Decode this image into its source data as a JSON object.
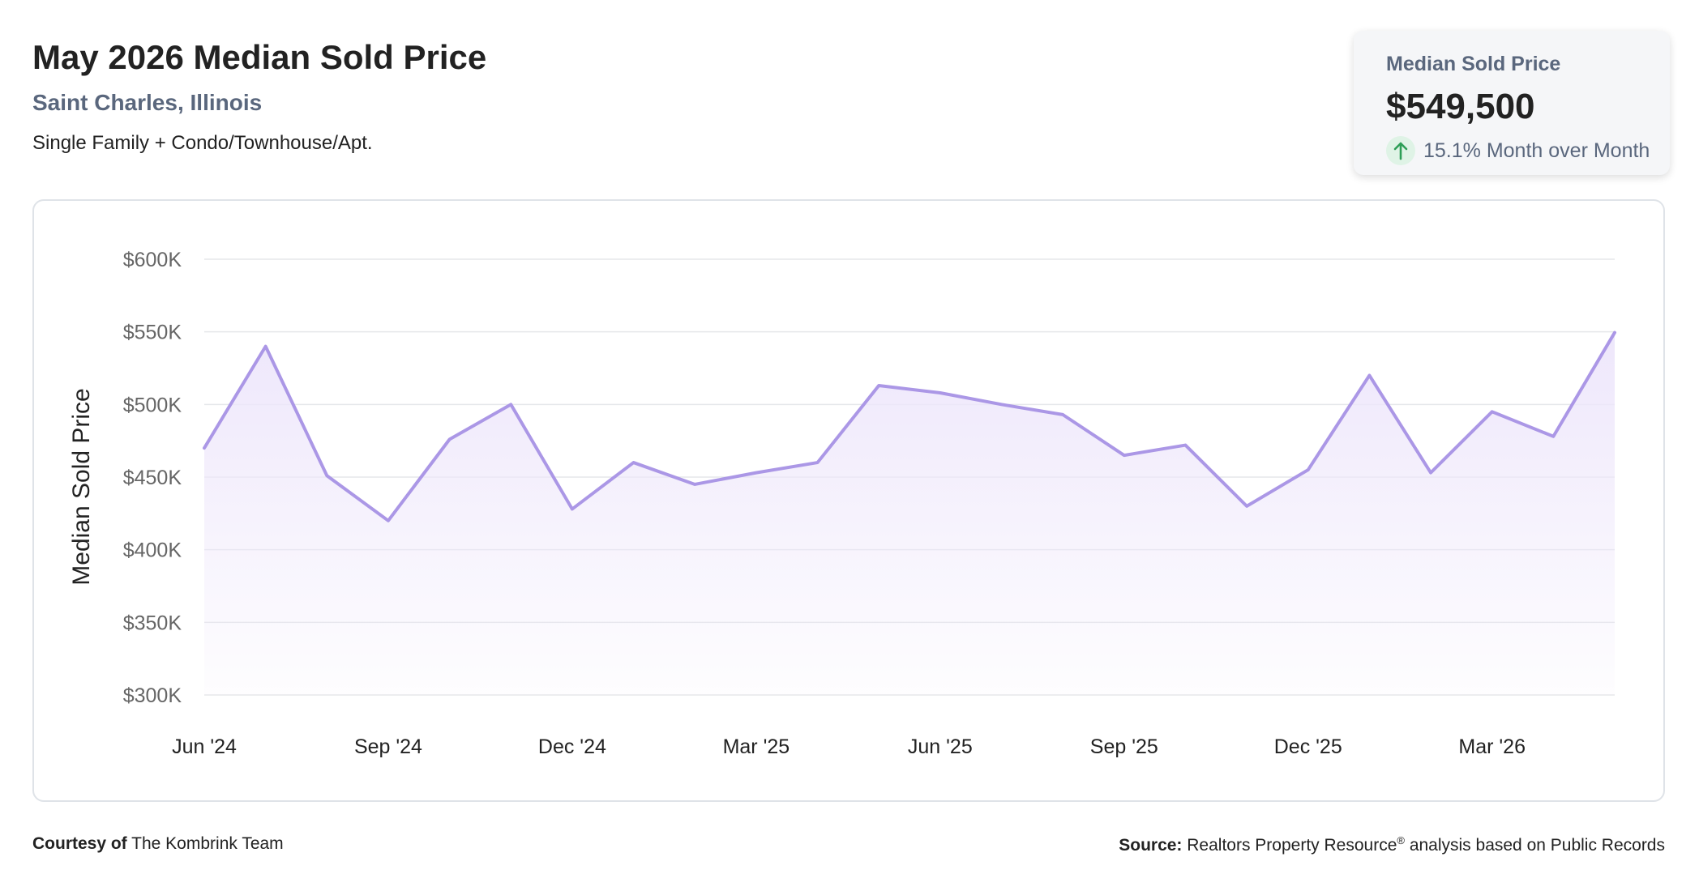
{
  "header": {
    "title": "May 2026 Median Sold Price",
    "location": "Saint Charles, Illinois",
    "property_type": "Single Family + Condo/Townhouse/Apt."
  },
  "summary_card": {
    "label": "Median Sold Price",
    "value": "$549,500",
    "change_text": "15.1% Month over Month",
    "change_direction": "up",
    "icon": "arrow-up-icon"
  },
  "colors": {
    "line": "#ab97e6",
    "area_top": "#eee7fb",
    "grid": "#e5e7ea",
    "tick_text": "#666666",
    "positive": "#2e9e57"
  },
  "chart_data": {
    "type": "area",
    "ylabel": "Median Sold Price",
    "ylim": [
      300000,
      600000
    ],
    "yticks": [
      300000,
      350000,
      400000,
      450000,
      500000,
      550000,
      600000
    ],
    "ytick_labels": [
      "$300K",
      "$350K",
      "$400K",
      "$450K",
      "$500K",
      "$550K",
      "$600K"
    ],
    "x_tick_labels": [
      "Jun '24",
      "Sep '24",
      "Dec '24",
      "Mar '25",
      "Jun '25",
      "Sep '25",
      "Dec '25",
      "Mar '26"
    ],
    "x_tick_index": [
      0,
      3,
      6,
      9,
      12,
      15,
      18,
      21
    ],
    "x": [
      "Jun '24",
      "Jul '24",
      "Aug '24",
      "Sep '24",
      "Oct '24",
      "Nov '24",
      "Dec '24",
      "Jan '25",
      "Feb '25",
      "Mar '25",
      "Apr '25",
      "May '25",
      "Jun '25",
      "Jul '25",
      "Aug '25",
      "Sep '25",
      "Oct '25",
      "Nov '25",
      "Dec '25",
      "Jan '26",
      "Feb '26",
      "Mar '26",
      "Apr '26",
      "May '26"
    ],
    "values": [
      470000,
      540000,
      451000,
      420000,
      476000,
      500000,
      428000,
      460000,
      445000,
      453000,
      460000,
      513000,
      508000,
      500000,
      493000,
      465000,
      472000,
      430000,
      455000,
      520000,
      453000,
      495000,
      478000,
      549500
    ],
    "grid": true,
    "legend": "none"
  },
  "footer": {
    "courtesy_label": "Courtesy of",
    "courtesy_name": "The Kombrink Team",
    "source_label": "Source:",
    "source_text": "Realtors Property Resource",
    "source_mark": "®",
    "source_suffix": "analysis based on Public Records"
  }
}
